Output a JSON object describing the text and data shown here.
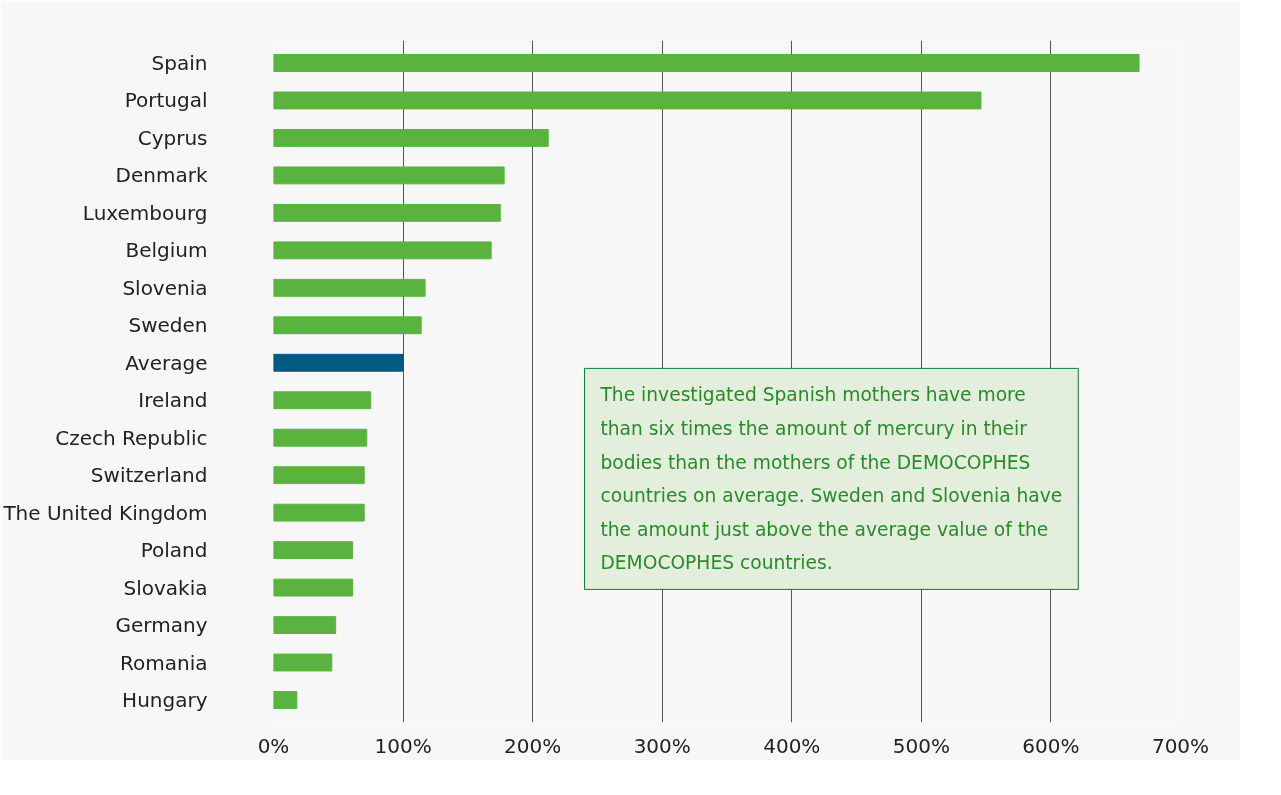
{
  "chart_data": {
    "type": "bar",
    "orientation": "horizontal",
    "categories": [
      "Spain",
      "Portugal",
      "Cyprus",
      "Denmark",
      "Luxembourg",
      "Belgium",
      "Slovenia",
      "Sweden",
      "Average",
      "Ireland",
      "Czech Republic",
      "Switzerland",
      "The United Kingdom",
      "Poland",
      "Slovakia",
      "Germany",
      "Romania",
      "Hungary"
    ],
    "values": [
      668,
      546,
      212,
      178,
      175,
      168,
      117,
      114,
      100,
      75,
      72,
      70,
      70,
      61,
      61,
      48,
      45,
      18
    ],
    "colors": [
      "#5ab33e",
      "#5ab33e",
      "#5ab33e",
      "#5ab33e",
      "#5ab33e",
      "#5ab33e",
      "#5ab33e",
      "#5ab33e",
      "#005a82",
      "#5ab33e",
      "#5ab33e",
      "#5ab33e",
      "#5ab33e",
      "#5ab33e",
      "#5ab33e",
      "#5ab33e",
      "#5ab33e",
      "#5ab33e"
    ],
    "xlim": [
      0,
      700
    ],
    "xticks": [
      {
        "value": 0,
        "label": "0%"
      },
      {
        "value": 100,
        "label": "100%"
      },
      {
        "value": 200,
        "label": "200%"
      },
      {
        "value": 300,
        "label": "300%"
      },
      {
        "value": 400,
        "label": "400%"
      },
      {
        "value": 500,
        "label": "500%"
      },
      {
        "value": 600,
        "label": "600%"
      },
      {
        "value": 700,
        "label": "700%"
      }
    ],
    "grid": "x",
    "annotations": [
      "The investigated Spanish mothers have more than six times the amount of mercury in their bodies than the mothers of the DEMOCOPHES countries on average. Sweden and Slovenia have the amount just above the average value of the DEMOCOPHES countries."
    ]
  }
}
